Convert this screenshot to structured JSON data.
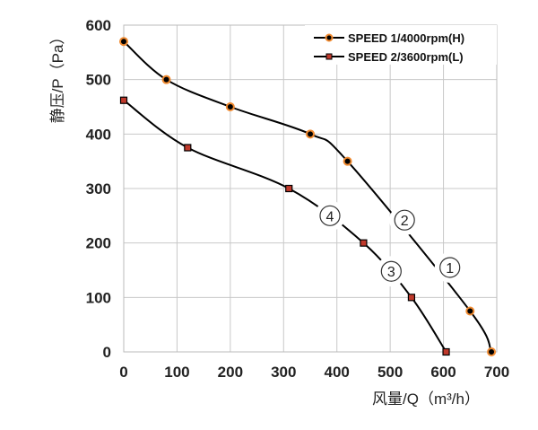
{
  "chart_data": {
    "type": "line",
    "xlabel": "风量/Q（m³/h）",
    "ylabel": "静压/P（Pa）",
    "xlim": [
      0,
      700
    ],
    "ylim": [
      0,
      600
    ],
    "xticks": [
      "0",
      "100",
      "200",
      "300",
      "400",
      "500",
      "600",
      "700"
    ],
    "yticks": [
      "0",
      "100",
      "200",
      "300",
      "400",
      "500",
      "600"
    ],
    "grid": true,
    "legend_position": "top-right",
    "series": [
      {
        "name": "SPEED 1/4000rpm(H)",
        "marker": "circle",
        "color": "#000000",
        "marker_edge": "#f08a30",
        "x": [
          0,
          80,
          200,
          350,
          420,
          650,
          690
        ],
        "y": [
          570,
          500,
          450,
          400,
          350,
          75,
          0
        ]
      },
      {
        "name": "SPEED 2/3600rpm(L)",
        "marker": "square",
        "color": "#000000",
        "marker_fill": "#c0392b",
        "x": [
          0,
          120,
          310,
          450,
          540,
          605
        ],
        "y": [
          462,
          375,
          300,
          200,
          100,
          0
        ]
      }
    ],
    "annotations": [
      {
        "text": "①",
        "x": 612,
        "y": 155
      },
      {
        "text": "②",
        "x": 527,
        "y": 242
      },
      {
        "text": "③",
        "x": 502,
        "y": 148
      },
      {
        "text": "④",
        "x": 387,
        "y": 250
      }
    ]
  }
}
